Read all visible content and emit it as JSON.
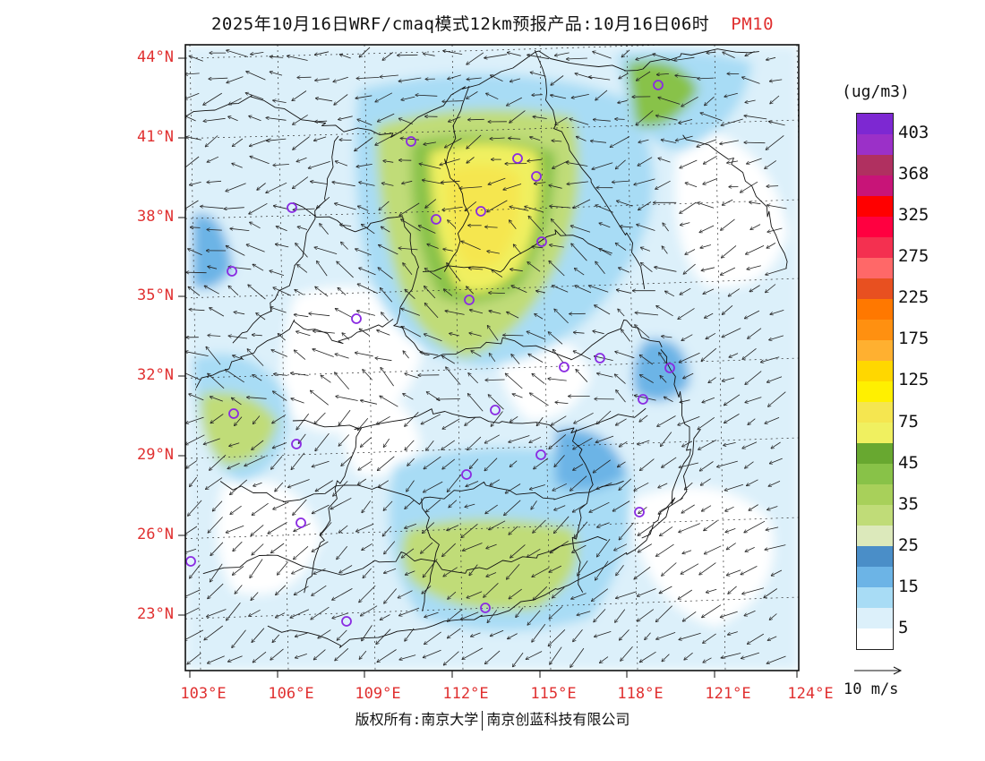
{
  "title": {
    "main": "2025年10月16日WRF/cmaq模式12km预报产品:10月16日06时",
    "variable": "PM10"
  },
  "axes": {
    "lat_labels": [
      "44°N",
      "41°N",
      "38°N",
      "35°N",
      "32°N",
      "29°N",
      "26°N",
      "23°N"
    ],
    "lon_labels": [
      "103°E",
      "106°E",
      "109°E",
      "112°E",
      "115°E",
      "118°E",
      "121°E",
      "124°E"
    ]
  },
  "legend": {
    "unit": "(ug/m3)",
    "colors": [
      "#ffffff",
      "#dcf0fa",
      "#a8dcf5",
      "#6cb4e6",
      "#4a8ec8",
      "#dce9bb",
      "#c0dc78",
      "#a8d05a",
      "#88c248",
      "#68a830",
      "#f0f060",
      "#f5e650",
      "#fff000",
      "#ffd700",
      "#ffb030",
      "#ff9010",
      "#ff7800",
      "#e85020",
      "#ff6868",
      "#f43050",
      "#ff0040",
      "#ff0000",
      "#c81478",
      "#b03060",
      "#9b30c8",
      "#7d28d2"
    ],
    "labels": [
      "5",
      "15",
      "25",
      "35",
      "45",
      "75",
      "125",
      "175",
      "225",
      "275",
      "325",
      "368",
      "403"
    ],
    "wind_scale": "10 m/s"
  },
  "colors": {
    "label_red": "#e03030",
    "station_ring": "#8a2be2"
  },
  "footer": {
    "left": "版权所有:南京大学",
    "right": "南京创蓝科技有限公司"
  }
}
